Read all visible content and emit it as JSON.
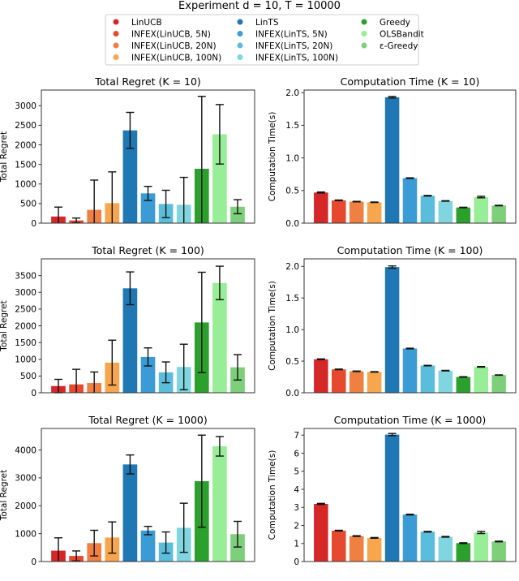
{
  "suptitle": "Experiment d = 10, T = 10000",
  "legend": {
    "placement": "top-center",
    "entries": [
      {
        "label": "LinUCB",
        "color": "#d62728"
      },
      {
        "label": "INFEX(LinUCB, 5N)",
        "color": "#e6492d"
      },
      {
        "label": "INFEX(LinUCB, 20N)",
        "color": "#f07f42"
      },
      {
        "label": "INFEX(LinUCB, 100N)",
        "color": "#f8a64e"
      },
      {
        "label": "LinTS",
        "color": "#1f77b4"
      },
      {
        "label": "INFEX(LinTS, 5N)",
        "color": "#3b9bd4"
      },
      {
        "label": "INFEX(LinTS, 20N)",
        "color": "#5bbddc"
      },
      {
        "label": "INFEX(LinTS, 100N)",
        "color": "#80d5de"
      },
      {
        "label": "Greedy",
        "color": "#2ca02c"
      },
      {
        "label": "OLSBandit",
        "color": "#98ee96"
      },
      {
        "label": "ε-Greedy",
        "color": "#7ecf7a"
      }
    ]
  },
  "chart_data": [
    {
      "type": "bar",
      "title": "Total Regret (K = 10)",
      "ylabel": "Total Regret",
      "ylim": [
        0,
        3400
      ],
      "yticks": [
        0,
        500,
        1000,
        1500,
        2000,
        2500,
        3000
      ],
      "grid": false,
      "values": [
        170,
        70,
        340,
        510,
        2370,
        760,
        490,
        470,
        1390,
        2270,
        420
      ],
      "errors": [
        240,
        60,
        760,
        800,
        460,
        180,
        350,
        700,
        1850,
        760,
        180
      ]
    },
    {
      "type": "bar",
      "title": "Computation Time (K = 10)",
      "ylabel": "Computation Time(s)",
      "ylim": [
        0,
        2.04
      ],
      "yticks": [
        0.0,
        0.5,
        1.0,
        1.5,
        2.0
      ],
      "grid": false,
      "values": [
        0.47,
        0.35,
        0.33,
        0.32,
        1.93,
        0.69,
        0.42,
        0.34,
        0.24,
        0.4,
        0.27
      ],
      "errors": [
        0.008,
        0.005,
        0.004,
        0.004,
        0.012,
        0.005,
        0.005,
        0.004,
        0.004,
        0.012,
        0.004
      ]
    },
    {
      "type": "bar",
      "title": "Total Regret (K = 100)",
      "ylabel": "Total Regret",
      "ylim": [
        0,
        4000
      ],
      "yticks": [
        0,
        500,
        1000,
        1500,
        2000,
        2500,
        3000,
        3500
      ],
      "grid": false,
      "values": [
        200,
        250,
        290,
        900,
        3120,
        1070,
        610,
        770,
        2100,
        3280,
        760
      ],
      "errors": [
        200,
        450,
        330,
        670,
        490,
        270,
        310,
        680,
        1500,
        500,
        380
      ]
    },
    {
      "type": "bar",
      "title": "Computation Time (K = 100)",
      "ylabel": "Computation Time(s)",
      "ylim": [
        0,
        2.12
      ],
      "yticks": [
        0.0,
        0.5,
        1.0,
        1.5,
        2.0
      ],
      "grid": false,
      "values": [
        0.53,
        0.37,
        0.34,
        0.33,
        1.99,
        0.7,
        0.43,
        0.35,
        0.25,
        0.41,
        0.28
      ],
      "errors": [
        0.006,
        0.005,
        0.004,
        0.004,
        0.018,
        0.005,
        0.004,
        0.004,
        0.004,
        0.005,
        0.003
      ]
    },
    {
      "type": "bar",
      "title": "Total Regret (K = 1000)",
      "ylabel": "Total Regret",
      "ylim": [
        0,
        4770
      ],
      "yticks": [
        0,
        1000,
        2000,
        3000,
        4000
      ],
      "grid": false,
      "values": [
        390,
        200,
        660,
        860,
        3480,
        1110,
        680,
        1210,
        2880,
        4130,
        980
      ],
      "errors": [
        460,
        180,
        460,
        560,
        340,
        150,
        380,
        880,
        1650,
        350,
        460
      ]
    },
    {
      "type": "bar",
      "title": "Computation Time (K = 1000)",
      "ylabel": "Computation Time(s)",
      "ylim": [
        0,
        7.37
      ],
      "yticks": [
        0,
        1,
        2,
        3,
        4,
        5,
        6,
        7
      ],
      "grid": false,
      "values": [
        3.19,
        1.71,
        1.41,
        1.31,
        7.03,
        2.6,
        1.65,
        1.37,
        1.02,
        1.61,
        1.11
      ],
      "errors": [
        0.03,
        0.02,
        0.02,
        0.02,
        0.06,
        0.02,
        0.02,
        0.02,
        0.02,
        0.06,
        0.02
      ]
    }
  ]
}
